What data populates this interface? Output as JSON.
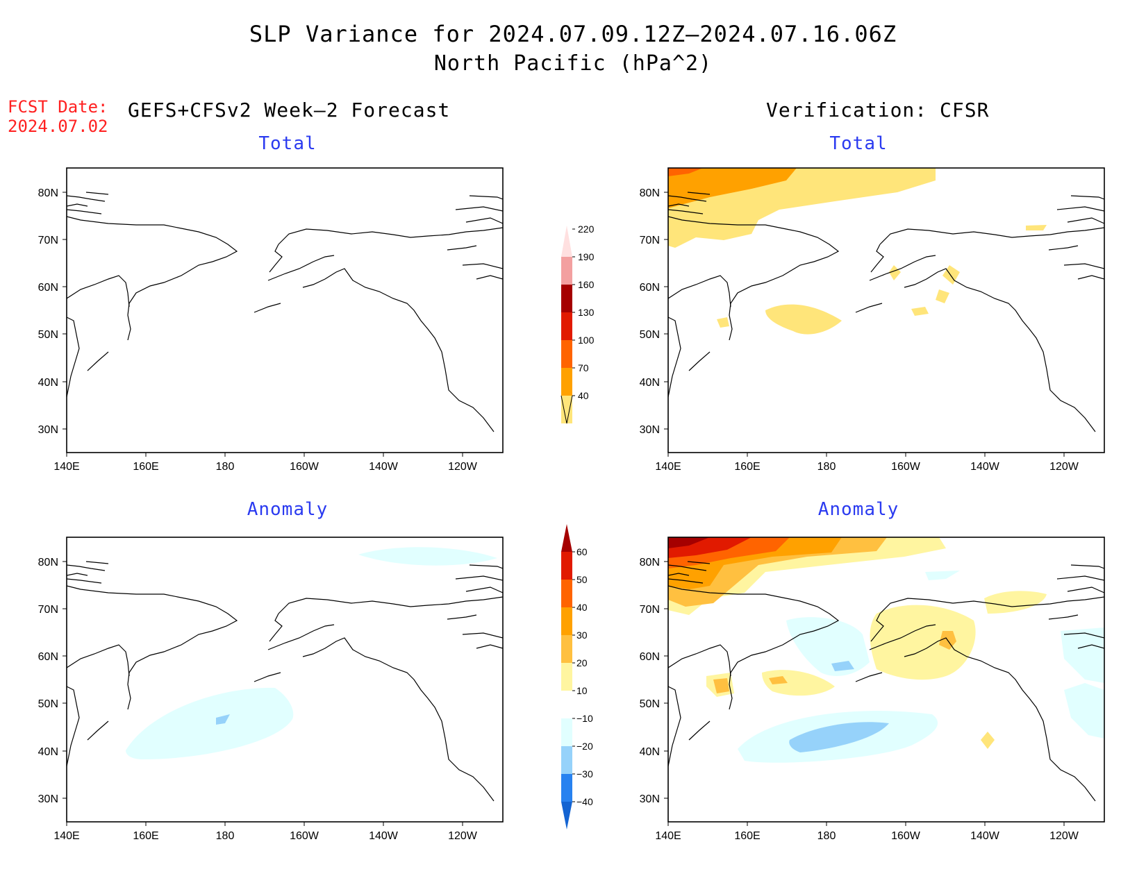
{
  "title": {
    "line1": "SLP Variance for 2024.07.09.12Z–2024.07.16.06Z",
    "line2": "North Pacific (hPa^2)"
  },
  "fcst_date": {
    "label": "FCST Date:",
    "value": "2024.07.02"
  },
  "headers": {
    "left": "GEFS+CFSv2 Week–2 Forecast",
    "right": "Verification: CFSR"
  },
  "panels": {
    "forecast_total": "Total",
    "verification_total": "Total",
    "forecast_anomaly": "Anomaly",
    "verification_anomaly": "Anomaly"
  },
  "axes": {
    "lat_labels": [
      "80N",
      "70N",
      "60N",
      "50N",
      "40N",
      "30N"
    ],
    "lon_labels": [
      "140E",
      "160E",
      "180",
      "160W",
      "140W",
      "120W"
    ]
  },
  "colorbars": {
    "total": {
      "levels": [
        "40",
        "70",
        "100",
        "130",
        "160",
        "190",
        "220"
      ],
      "colors": [
        "#ffe57a",
        "#ffa100",
        "#ff6400",
        "#e11a00",
        "#a50000",
        "#f3a0a0",
        "#ffe0e0"
      ]
    },
    "anomaly": {
      "levels": [
        "−40",
        "−30",
        "−20",
        "−10",
        "10",
        "20",
        "30",
        "40",
        "50",
        "60"
      ],
      "colors": [
        "#1464d2",
        "#2882f0",
        "#96d2fa",
        "#e1ffff",
        "#ffffff",
        "#fff5a0",
        "#ffc040",
        "#ffa100",
        "#ff6400",
        "#e11a00",
        "#a50000"
      ]
    }
  },
  "colors": {
    "fcst_red": "#ff2020",
    "panel_label_blue": "#2a3af0"
  }
}
